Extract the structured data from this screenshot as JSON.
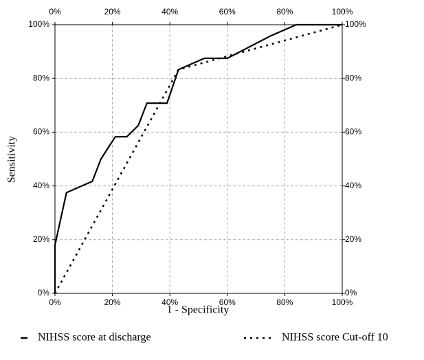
{
  "chart_data": {
    "type": "line",
    "xlabel": "1 - Specificity",
    "ylabel": "Sensitivity",
    "xlim": [
      0,
      100
    ],
    "ylim": [
      0,
      100
    ],
    "xticks": [
      {
        "value": 0,
        "label": "0%"
      },
      {
        "value": 20,
        "label": "20%"
      },
      {
        "value": 40,
        "label": "40%"
      },
      {
        "value": 60,
        "label": "60%"
      },
      {
        "value": 80,
        "label": "80%"
      },
      {
        "value": 100,
        "label": "100%"
      }
    ],
    "yticks": [
      {
        "value": 0,
        "label": "0%"
      },
      {
        "value": 20,
        "label": "20%"
      },
      {
        "value": 40,
        "label": "40%"
      },
      {
        "value": 60,
        "label": "60%"
      },
      {
        "value": 80,
        "label": "80%"
      },
      {
        "value": 100,
        "label": "100%"
      }
    ],
    "grid": true,
    "series": [
      {
        "name": "NIHSS score at discharge",
        "color": "#000000",
        "dash": "solid",
        "x": [
          0,
          0,
          4,
          13,
          16,
          21,
          25,
          29,
          32,
          39,
          43,
          52,
          60,
          75,
          84,
          100
        ],
        "values": [
          0,
          18,
          37.5,
          41.7,
          50,
          58.3,
          58.3,
          62.5,
          70.8,
          70.8,
          83.3,
          87.5,
          87.5,
          95.8,
          100,
          100
        ]
      },
      {
        "name": "NIHSS score Cut-off 10",
        "color": "#000000",
        "dash": "dotted",
        "x": [
          0,
          43,
          100
        ],
        "values": [
          0,
          83.3,
          100
        ]
      }
    ]
  }
}
